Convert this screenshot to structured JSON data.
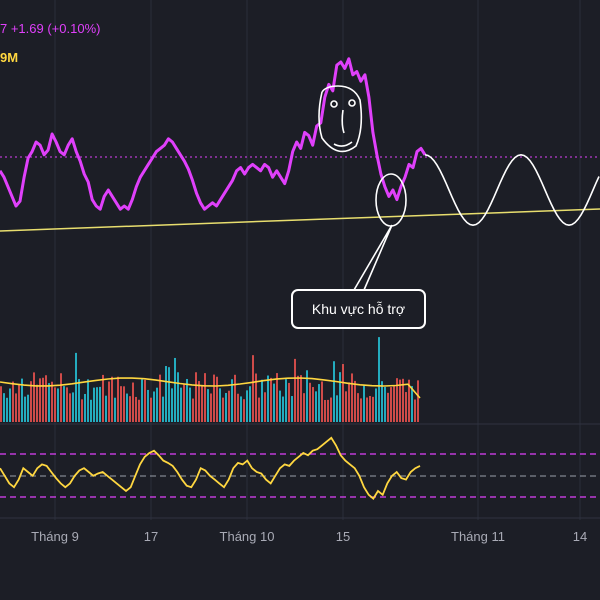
{
  "header": {
    "quote_text": "7  +1.69 (+0.10%)",
    "volume_text": "9M"
  },
  "annotation": {
    "label": "Khu vực hỗ trợ"
  },
  "colors": {
    "background": "#1c1e26",
    "price": "#e040fb",
    "volume_ma": "#ffd740",
    "oscillator": "#ffd740",
    "projection": "#ffffff",
    "support": "#e8de6e",
    "resistance_dotted": "#e040fb",
    "bar_up": "#26c6da",
    "bar_down": "#ef5350",
    "osc_bands": "#e040fb",
    "grid": "#2a2e39"
  },
  "chart_data": {
    "type": "line",
    "xlabel": "",
    "ylabel": "",
    "x_tick_labels": [
      "Tháng 9",
      "17",
      "Tháng 10",
      "15",
      "Tháng 11",
      "14"
    ],
    "grid": true,
    "price_series": [
      62,
      58,
      52,
      46,
      40,
      43,
      58,
      70,
      74,
      80,
      78,
      72,
      75,
      85,
      80,
      74,
      72,
      78,
      82,
      74,
      68,
      60,
      55,
      44,
      40,
      38,
      46,
      50,
      46,
      42,
      38,
      40,
      38,
      44,
      52,
      58,
      62,
      66,
      70,
      74,
      76,
      78,
      82,
      80,
      76,
      72,
      68,
      63,
      56,
      48,
      42,
      38,
      40,
      42,
      40,
      44,
      48,
      52,
      56,
      62,
      64,
      60,
      64,
      66,
      64,
      62,
      66,
      64,
      58,
      62,
      58,
      54,
      62,
      74,
      80,
      76,
      86,
      84,
      78,
      90,
      92,
      108,
      116,
      112,
      128,
      130,
      126,
      132,
      122,
      124,
      118,
      122,
      108,
      86,
      72,
      60,
      52,
      46,
      50,
      44,
      52,
      58,
      66,
      64,
      74,
      76,
      72
    ],
    "projection_amplitude": 22,
    "support_line": "upward sloping trendline",
    "oscillator_series": [
      0.55,
      0.45,
      0.35,
      0.3,
      0.4,
      0.55,
      0.5,
      0.45,
      0.55,
      0.6,
      0.58,
      0.5,
      0.42,
      0.35,
      0.3,
      0.35,
      0.45,
      0.52,
      0.55,
      0.5,
      0.45,
      0.48,
      0.5,
      0.45,
      0.4,
      0.35,
      0.3,
      0.25,
      0.3,
      0.45,
      0.6,
      0.7,
      0.75,
      0.78,
      0.72,
      0.65,
      0.62,
      0.58,
      0.5,
      0.4,
      0.32,
      0.3,
      0.4,
      0.55,
      0.52,
      0.45,
      0.4,
      0.35,
      0.3,
      0.4,
      0.55,
      0.62,
      0.6,
      0.65,
      0.55,
      0.5,
      0.48,
      0.4,
      0.35,
      0.45,
      0.55,
      0.6,
      0.58,
      0.65,
      0.7,
      0.75,
      0.72,
      0.78,
      0.8,
      0.85,
      0.9,
      0.95,
      0.85,
      0.72,
      0.65,
      0.6,
      0.55,
      0.45,
      0.3,
      0.2,
      0.15,
      0.25,
      0.2,
      0.35,
      0.45,
      0.5,
      0.42,
      0.4,
      0.5,
      0.55,
      0.58
    ]
  }
}
